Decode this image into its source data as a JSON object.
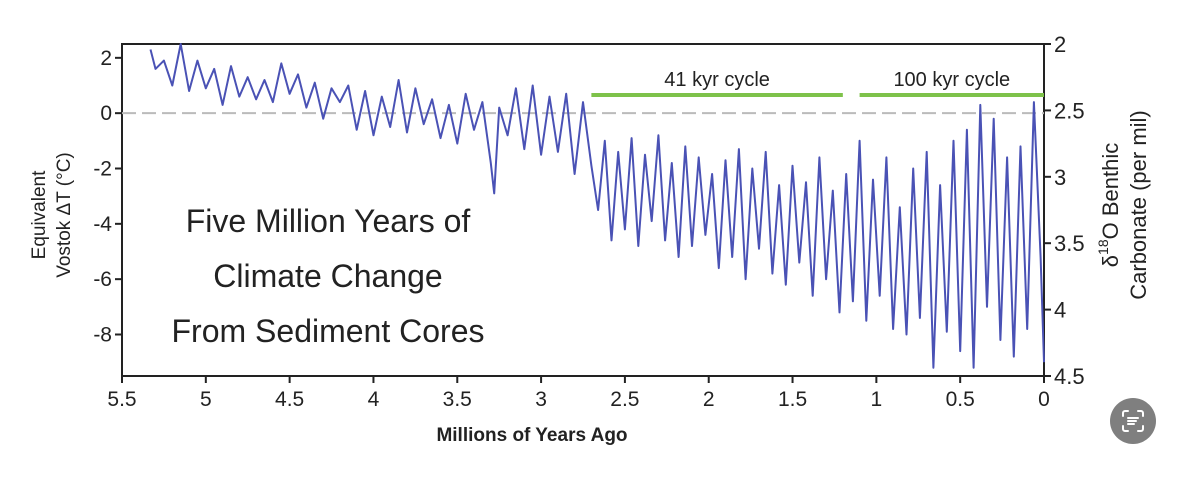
{
  "chart_data": {
    "type": "line",
    "title_lines": [
      "Five Million Years of",
      "Climate Change",
      "From Sediment Cores"
    ],
    "xlabel": "Millions of Years Ago",
    "ylabel_left": [
      "Equivalent",
      "Vostok ΔT (°C)"
    ],
    "ylabel_right": {
      "delta": "δ",
      "sup": "18",
      "rest": "O Benthic",
      "line2": "Carbonate (per mil)"
    },
    "x_axis": {
      "range": [
        5.5,
        0
      ],
      "reversed": true,
      "ticks": [
        "5.5",
        "5",
        "4.5",
        "4",
        "3.5",
        "3",
        "2.5",
        "2",
        "1.5",
        "1",
        "0.5",
        "0"
      ]
    },
    "y_left": {
      "range": [
        -9.5,
        2.5
      ],
      "ticks": [
        "2",
        "0",
        "-2",
        "-4",
        "-6",
        "-8"
      ]
    },
    "y_right": {
      "range": [
        2,
        4.5
      ],
      "ticks": [
        "2",
        "2.5",
        "3",
        "3.5",
        "4",
        "4.5"
      ]
    },
    "reference_line": {
      "y": 0,
      "style": "dashed",
      "color": "#bbbbbb"
    },
    "cycles": [
      {
        "label": "41 kyr cycle",
        "x_start": 2.7,
        "x_end": 1.2,
        "color": "#7ec24a"
      },
      {
        "label": "100 kyr cycle",
        "x_start": 1.1,
        "x_end": 0.0,
        "color": "#7ec24a"
      }
    ],
    "series": [
      {
        "color": "#4a52b5",
        "x": [
          5.33,
          5.3,
          5.25,
          5.2,
          5.15,
          5.1,
          5.05,
          5.0,
          4.95,
          4.9,
          4.85,
          4.8,
          4.75,
          4.7,
          4.65,
          4.6,
          4.55,
          4.5,
          4.45,
          4.4,
          4.35,
          4.3,
          4.25,
          4.2,
          4.15,
          4.1,
          4.05,
          4.0,
          3.95,
          3.9,
          3.85,
          3.8,
          3.75,
          3.7,
          3.65,
          3.6,
          3.55,
          3.5,
          3.45,
          3.4,
          3.35,
          3.3,
          3.28,
          3.25,
          3.2,
          3.15,
          3.1,
          3.05,
          3.0,
          2.95,
          2.9,
          2.85,
          2.8,
          2.75,
          2.7,
          2.66,
          2.62,
          2.58,
          2.54,
          2.5,
          2.46,
          2.42,
          2.38,
          2.34,
          2.3,
          2.26,
          2.22,
          2.18,
          2.14,
          2.1,
          2.06,
          2.02,
          1.98,
          1.94,
          1.9,
          1.86,
          1.82,
          1.78,
          1.74,
          1.7,
          1.66,
          1.62,
          1.58,
          1.54,
          1.5,
          1.46,
          1.42,
          1.38,
          1.34,
          1.3,
          1.26,
          1.22,
          1.18,
          1.14,
          1.1,
          1.06,
          1.02,
          0.98,
          0.94,
          0.9,
          0.86,
          0.82,
          0.78,
          0.74,
          0.7,
          0.66,
          0.62,
          0.58,
          0.54,
          0.5,
          0.46,
          0.42,
          0.38,
          0.34,
          0.3,
          0.26,
          0.22,
          0.18,
          0.14,
          0.1,
          0.06,
          0.02,
          0.0
        ],
        "y": [
          2.3,
          1.6,
          1.9,
          1.0,
          2.5,
          0.8,
          1.9,
          0.9,
          1.6,
          0.3,
          1.7,
          0.6,
          1.3,
          0.5,
          1.2,
          0.4,
          1.8,
          0.7,
          1.4,
          0.2,
          1.1,
          -0.2,
          0.9,
          0.4,
          1.0,
          -0.6,
          0.8,
          -0.8,
          0.6,
          -0.5,
          1.2,
          -0.7,
          0.9,
          -0.4,
          0.5,
          -0.9,
          0.3,
          -1.1,
          0.7,
          -0.6,
          0.4,
          -1.8,
          -2.9,
          0.2,
          -0.8,
          0.9,
          -1.3,
          1.0,
          -1.5,
          0.6,
          -1.4,
          0.7,
          -2.2,
          0.4,
          -1.9,
          -3.5,
          -1.0,
          -4.6,
          -1.4,
          -4.2,
          -0.9,
          -4.8,
          -1.5,
          -3.9,
          -0.8,
          -4.6,
          -1.8,
          -5.2,
          -1.2,
          -4.8,
          -1.6,
          -4.4,
          -2.2,
          -5.6,
          -1.7,
          -5.2,
          -1.3,
          -6.0,
          -2.0,
          -4.9,
          -1.4,
          -5.8,
          -2.6,
          -6.2,
          -1.9,
          -5.4,
          -2.5,
          -6.6,
          -1.6,
          -6.0,
          -2.8,
          -7.2,
          -2.2,
          -6.8,
          -1.0,
          -7.5,
          -2.4,
          -6.6,
          -1.6,
          -7.8,
          -3.4,
          -8.0,
          -2.0,
          -7.4,
          -1.4,
          -9.2,
          -2.6,
          -7.9,
          -1.0,
          -8.6,
          -0.6,
          -9.2,
          0.3,
          -7.0,
          -0.2,
          -8.2,
          -1.6,
          -8.8,
          -1.2,
          -7.8,
          0.4,
          -5.2,
          -9.0
        ]
      }
    ]
  },
  "overlay_button": {
    "icon": "scan-text-icon"
  }
}
